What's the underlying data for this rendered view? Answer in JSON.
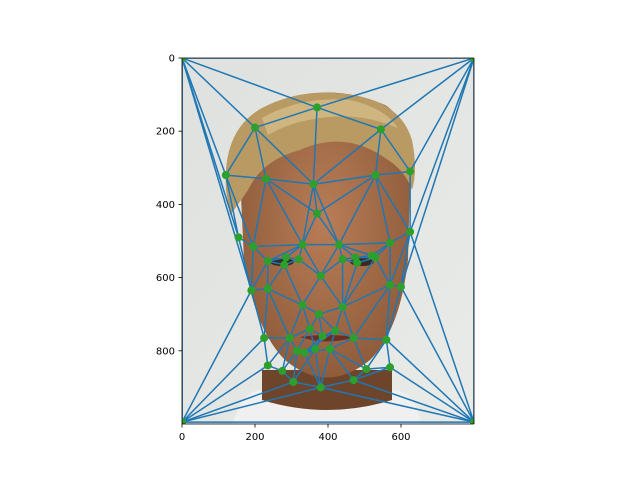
{
  "chart_data": {
    "type": "scatter",
    "title": "",
    "xlabel": "",
    "ylabel": "",
    "xlim": [
      0,
      800
    ],
    "ylim": [
      1000,
      0
    ],
    "y_inverted": true,
    "grid": false,
    "x_ticks": [
      0,
      200,
      400,
      600
    ],
    "x_tick_labels": [
      "0",
      "200",
      "400",
      "600"
    ],
    "y_ticks": [
      0,
      200,
      400,
      600,
      800
    ],
    "y_tick_labels": [
      "0",
      "200",
      "400",
      "600",
      "800"
    ],
    "image": "face-photograph",
    "colors": {
      "mesh_line": "#1f77b4",
      "point": "#2ca02c",
      "wall": "#e4e6e4",
      "hair": "#b89a62",
      "skin": "#a9704c",
      "shirt": "#f0f0f0"
    },
    "series": [
      {
        "marker": "point",
        "x": [
          0,
          800,
          0,
          800,
          370,
          200,
          545,
          120,
          230,
          360,
          530,
          625,
          370,
          155,
          195,
          235,
          285,
          330,
          430,
          475,
          520,
          570,
          625,
          280,
          320,
          380,
          440,
          480,
          530,
          190,
          235,
          600,
          570,
          330,
          440,
          375,
          225,
          295,
          350,
          385,
          420,
          470,
          560,
          365,
          315,
          335,
          405,
          235,
          275,
          305,
          380,
          470,
          505,
          570
        ],
        "y": [
          0,
          0,
          995,
          995,
          135,
          190,
          195,
          320,
          330,
          345,
          320,
          310,
          425,
          490,
          515,
          555,
          545,
          510,
          510,
          545,
          540,
          505,
          475,
          565,
          550,
          595,
          550,
          560,
          545,
          635,
          630,
          625,
          620,
          675,
          680,
          700,
          765,
          765,
          740,
          760,
          745,
          765,
          770,
          795,
          800,
          805,
          795,
          840,
          855,
          885,
          900,
          880,
          850,
          845
        ]
      }
    ],
    "edges": [
      [
        0,
        1
      ],
      [
        1,
        3
      ],
      [
        3,
        2
      ],
      [
        2,
        0
      ],
      [
        0,
        4
      ],
      [
        4,
        1
      ],
      [
        0,
        5
      ],
      [
        5,
        4
      ],
      [
        4,
        6
      ],
      [
        6,
        1
      ],
      [
        0,
        7
      ],
      [
        7,
        5
      ],
      [
        1,
        11
      ],
      [
        6,
        11
      ],
      [
        1,
        22
      ],
      [
        0,
        13
      ],
      [
        0,
        29
      ],
      [
        0,
        2
      ],
      [
        2,
        29
      ],
      [
        2,
        36
      ],
      [
        2,
        47
      ],
      [
        2,
        49
      ],
      [
        2,
        50
      ],
      [
        3,
        50
      ],
      [
        3,
        51
      ],
      [
        3,
        53
      ],
      [
        3,
        42
      ],
      [
        3,
        31
      ],
      [
        3,
        22
      ],
      [
        1,
        31
      ],
      [
        5,
        8
      ],
      [
        5,
        9
      ],
      [
        4,
        9
      ],
      [
        6,
        9
      ],
      [
        6,
        10
      ],
      [
        10,
        11
      ],
      [
        7,
        8
      ],
      [
        8,
        9
      ],
      [
        9,
        10
      ],
      [
        7,
        13
      ],
      [
        7,
        14
      ],
      [
        8,
        14
      ],
      [
        8,
        12
      ],
      [
        9,
        12
      ],
      [
        10,
        12
      ],
      [
        10,
        21
      ],
      [
        10,
        22
      ],
      [
        11,
        22
      ],
      [
        8,
        17
      ],
      [
        9,
        17
      ],
      [
        9,
        18
      ],
      [
        12,
        17
      ],
      [
        12,
        18
      ],
      [
        10,
        18
      ],
      [
        13,
        14
      ],
      [
        14,
        15
      ],
      [
        15,
        16
      ],
      [
        16,
        17
      ],
      [
        17,
        18
      ],
      [
        18,
        19
      ],
      [
        19,
        20
      ],
      [
        20,
        21
      ],
      [
        21,
        22
      ],
      [
        14,
        17
      ],
      [
        15,
        17
      ],
      [
        17,
        24
      ],
      [
        18,
        26
      ],
      [
        20,
        18
      ],
      [
        21,
        18
      ],
      [
        14,
        29
      ],
      [
        13,
        29
      ],
      [
        15,
        29
      ],
      [
        15,
        30
      ],
      [
        15,
        23
      ],
      [
        16,
        23
      ],
      [
        23,
        24
      ],
      [
        24,
        16
      ],
      [
        24,
        25
      ],
      [
        17,
        25
      ],
      [
        25,
        18
      ],
      [
        25,
        26
      ],
      [
        26,
        27
      ],
      [
        27,
        28
      ],
      [
        28,
        19
      ],
      [
        26,
        19
      ],
      [
        28,
        21
      ],
      [
        28,
        32
      ],
      [
        22,
        31
      ],
      [
        21,
        32
      ],
      [
        32,
        31
      ],
      [
        22,
        32
      ],
      [
        23,
        30
      ],
      [
        23,
        33
      ],
      [
        25,
        33
      ],
      [
        25,
        34
      ],
      [
        26,
        34
      ],
      [
        27,
        34
      ],
      [
        28,
        34
      ],
      [
        32,
        34
      ],
      [
        29,
        30
      ],
      [
        30,
        33
      ],
      [
        33,
        35
      ],
      [
        34,
        35
      ],
      [
        35,
        38
      ],
      [
        35,
        39
      ],
      [
        35,
        40
      ],
      [
        33,
        38
      ],
      [
        34,
        40
      ],
      [
        29,
        36
      ],
      [
        30,
        36
      ],
      [
        30,
        37
      ],
      [
        33,
        37
      ],
      [
        37,
        38
      ],
      [
        38,
        39
      ],
      [
        39,
        40
      ],
      [
        40,
        41
      ],
      [
        41,
        42
      ],
      [
        34,
        41
      ],
      [
        32,
        41
      ],
      [
        32,
        42
      ],
      [
        31,
        42
      ],
      [
        36,
        37
      ],
      [
        36,
        47
      ],
      [
        37,
        47
      ],
      [
        37,
        48
      ],
      [
        37,
        44
      ],
      [
        38,
        44
      ],
      [
        38,
        43
      ],
      [
        39,
        43
      ],
      [
        39,
        45
      ],
      [
        40,
        45
      ],
      [
        40,
        46
      ],
      [
        41,
        46
      ],
      [
        41,
        52
      ],
      [
        42,
        52
      ],
      [
        42,
        53
      ],
      [
        43,
        44
      ],
      [
        43,
        45
      ],
      [
        45,
        46
      ],
      [
        44,
        48
      ],
      [
        44,
        49
      ],
      [
        43,
        49
      ],
      [
        43,
        50
      ],
      [
        45,
        50
      ],
      [
        46,
        50
      ],
      [
        46,
        51
      ],
      [
        46,
        52
      ],
      [
        51,
        52
      ],
      [
        52,
        53
      ],
      [
        47,
        48
      ],
      [
        48,
        49
      ],
      [
        49,
        50
      ],
      [
        50,
        51
      ],
      [
        51,
        53
      ]
    ]
  }
}
